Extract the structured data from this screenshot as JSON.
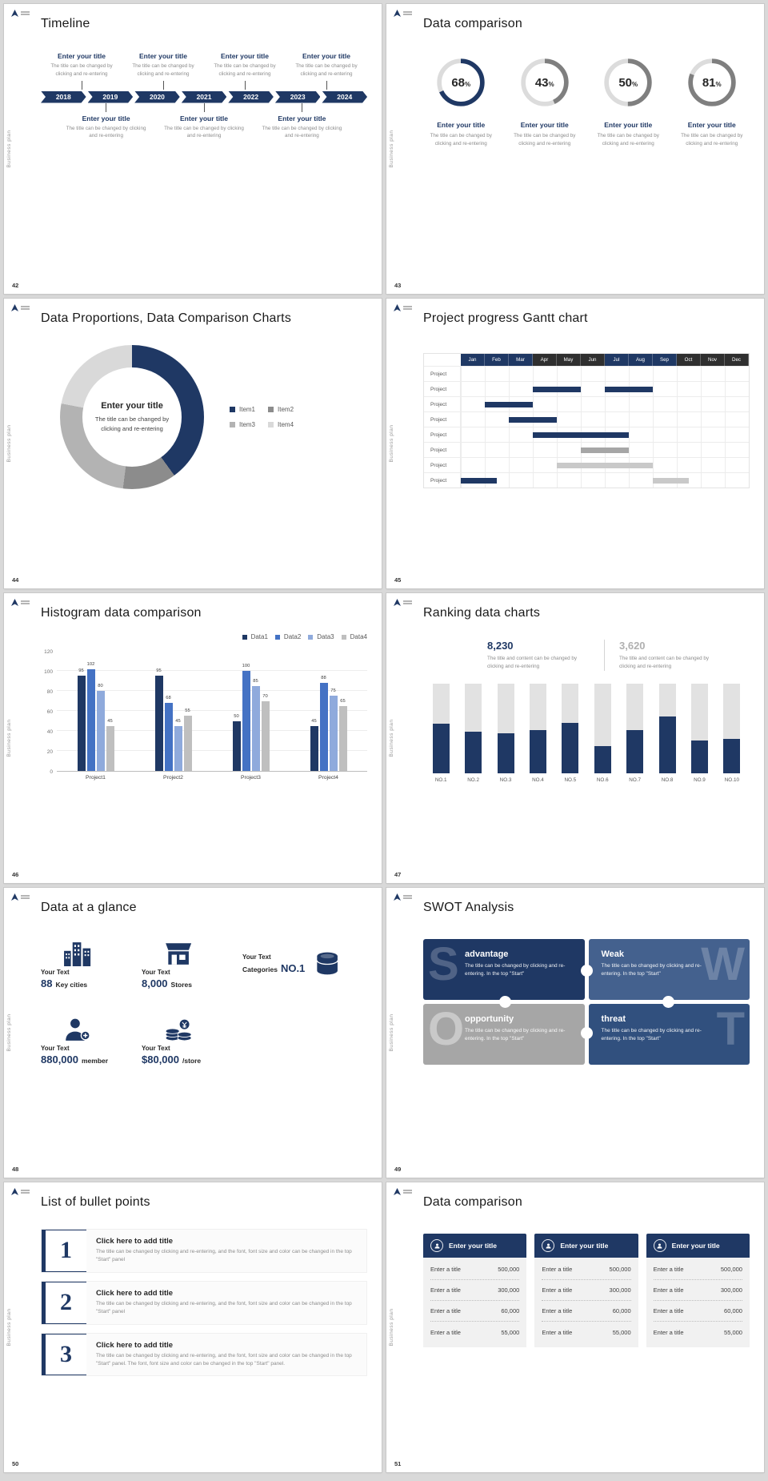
{
  "common": {
    "brand_vertical": "Business plan"
  },
  "slides": [
    {
      "number": "42",
      "title": "Timeline",
      "top_items": [
        {
          "title": "Enter your title",
          "desc": "The title can be changed by clicking and re-entering"
        },
        {
          "title": "Enter your title",
          "desc": "The title can be changed by clicking and re-entering"
        },
        {
          "title": "Enter your title",
          "desc": "The title can be changed by clicking and re-entering"
        },
        {
          "title": "Enter your title",
          "desc": "The title can be changed by clicking and re-entering"
        }
      ],
      "years": [
        "2018",
        "2019",
        "2020",
        "2021",
        "2022",
        "2023",
        "2024"
      ],
      "bottom_items": [
        {
          "title": "Enter your title",
          "desc": "The title can be changed by clicking and re-entering"
        },
        {
          "title": "Enter your title",
          "desc": "The title can be changed by clicking and re-entering"
        },
        {
          "title": "Enter your title",
          "desc": "The title can be changed by clicking and re-entering"
        }
      ]
    },
    {
      "number": "43",
      "title": "Data comparison",
      "kpis": [
        {
          "value": "68",
          "unit": "%",
          "pct": 68,
          "color": "#1f3864",
          "title": "Enter your title",
          "desc": "The title can be changed by clicking and re-entering"
        },
        {
          "value": "43",
          "unit": "%",
          "pct": 43,
          "color": "#7f7f7f",
          "title": "Enter your title",
          "desc": "The title can be changed by clicking and re-entering"
        },
        {
          "value": "50",
          "unit": "%",
          "pct": 50,
          "color": "#7f7f7f",
          "title": "Enter your title",
          "desc": "The title can be changed by clicking and re-entering"
        },
        {
          "value": "81",
          "unit": "%",
          "pct": 81,
          "color": "#7f7f7f",
          "title": "Enter your title",
          "desc": "The title can be changed by clicking and re-entering"
        }
      ]
    },
    {
      "number": "44",
      "title": "Data Proportions, Data Comparison Charts",
      "center_title": "Enter your title",
      "center_desc": "The title can be changed by clicking and re-entering",
      "chart_data": {
        "type": "pie",
        "labels": [
          "Item1",
          "Item2",
          "Item3",
          "Item4"
        ],
        "values": [
          40,
          12,
          26,
          22
        ],
        "colors": [
          "#1f3864",
          "#8c8c8c",
          "#b3b3b3",
          "#d9d9d9"
        ]
      }
    },
    {
      "number": "45",
      "title": "Project progress Gantt chart",
      "chart_data": {
        "type": "gantt",
        "months": [
          "Jan",
          "Feb",
          "Mar",
          "Apr",
          "May",
          "Jun",
          "Jul",
          "Aug",
          "Sep",
          "Oct",
          "Nov",
          "Dec"
        ],
        "header_colors": [
          "#1f3864",
          "#1f3864",
          "#1f3864",
          "#2f2f2f",
          "#2f2f2f",
          "#2f2f2f",
          "#1f3864",
          "#1f3864",
          "#1f3864",
          "#2f2f2f",
          "#2f2f2f",
          "#2f2f2f"
        ],
        "row_label": "Project",
        "rows": [
          {
            "bars": []
          },
          {
            "bars": [
              {
                "start": 3,
                "span": 2,
                "color": "#1f3864"
              },
              {
                "start": 6,
                "span": 2,
                "color": "#1f3864"
              }
            ]
          },
          {
            "bars": [
              {
                "start": 1,
                "span": 2,
                "color": "#1f3864"
              }
            ]
          },
          {
            "bars": [
              {
                "start": 2,
                "span": 2,
                "color": "#1f3864"
              }
            ]
          },
          {
            "bars": [
              {
                "start": 3,
                "span": 4,
                "color": "#1f3864"
              }
            ]
          },
          {
            "bars": [
              {
                "start": 5,
                "span": 2,
                "color": "#a6a6a6"
              }
            ]
          },
          {
            "bars": [
              {
                "start": 4,
                "span": 4,
                "color": "#c9c9c9"
              }
            ]
          },
          {
            "bars": [
              {
                "start": 0,
                "span": 1.5,
                "color": "#1f3864"
              },
              {
                "start": 8,
                "span": 1.5,
                "color": "#c9c9c9"
              }
            ]
          }
        ]
      }
    },
    {
      "number": "46",
      "title": "Histogram data comparison",
      "chart_data": {
        "type": "bar",
        "categories": [
          "Project1",
          "Project2",
          "Project3",
          "Project4"
        ],
        "series": [
          {
            "name": "Data1",
            "color": "#1f3864",
            "values": [
              95,
              95,
              50,
              45
            ]
          },
          {
            "name": "Data2",
            "color": "#4472c4",
            "values": [
              102,
              68,
              100,
              88
            ]
          },
          {
            "name": "Data3",
            "color": "#8faadc",
            "values": [
              80,
              45,
              85,
              75
            ]
          },
          {
            "name": "Data4",
            "color": "#bfbfbf",
            "values": [
              45,
              55,
              70,
              65
            ]
          }
        ],
        "ylim": [
          0,
          120
        ],
        "yticks": [
          0,
          20,
          40,
          60,
          80,
          100,
          120
        ]
      }
    },
    {
      "number": "47",
      "title": "Ranking data charts",
      "stat_primary": {
        "value": "8,230",
        "desc": "The title and content can be changed by clicking and re-entering"
      },
      "stat_secondary": {
        "value": "3,620",
        "desc": "The title and content can be changed by clicking and re-entering"
      },
      "chart_data": {
        "type": "bar",
        "categories": [
          "NO.1",
          "NO.2",
          "NO.3",
          "NO.4",
          "NO.5",
          "NO.6",
          "NO.7",
          "NO.8",
          "NO.9",
          "NO.10"
        ],
        "values": [
          55,
          46,
          44,
          48,
          56,
          30,
          48,
          63,
          36,
          38
        ],
        "max": 100,
        "bar_color": "#1f3864",
        "track_color": "#e2e2e2"
      }
    },
    {
      "number": "48",
      "title": "Data at a glance",
      "stats": [
        {
          "label": "Your Text",
          "value": "88",
          "unit": "Key cities",
          "icon": "city-icon"
        },
        {
          "label": "Your Text",
          "value": "8,000",
          "unit": "Stores",
          "icon": "store-icon"
        },
        {
          "label": "Your Text",
          "value": "NO.1",
          "unit": "Categories",
          "icon": "package-icon"
        },
        {
          "label": "Your Text",
          "value": "880,000",
          "unit": "member",
          "icon": "member-icon"
        },
        {
          "label": "Your Text",
          "value": "$80,000",
          "unit": "/store",
          "icon": "coins-icon"
        }
      ]
    },
    {
      "number": "49",
      "title": "SWOT Analysis",
      "quadrants": [
        {
          "letter": "S",
          "title": "advantage",
          "color": "#1f3864",
          "desc": "The title can be changed by clicking and re-entering. In the top \"Start\""
        },
        {
          "letter": "W",
          "title": "Weak",
          "color": "#44618e",
          "desc": "The title can be changed by clicking and re-entering. In the top \"Start\""
        },
        {
          "letter": "O",
          "title": "opportunity",
          "color": "#a6a6a6",
          "desc": "The title can be changed by clicking and re-entering. In the top \"Start\""
        },
        {
          "letter": "T",
          "title": "threat",
          "color": "#31507e",
          "desc": "The title can be changed by clicking and re-entering. In the top \"Start\""
        }
      ]
    },
    {
      "number": "50",
      "title": "List of bullet points",
      "items": [
        {
          "num": "1",
          "title": "Click here to add title",
          "desc": "The title can be changed by clicking and re-entering, and the font, font size and color can be changed in the top \"Start\" panel"
        },
        {
          "num": "2",
          "title": "Click here to add title",
          "desc": "The title can be changed by clicking and re-entering, and the font, font size and color can be changed in the top \"Start\" panel"
        },
        {
          "num": "3",
          "title": "Click here to add title",
          "desc": "The title can be changed by clicking and re-entering, and the font, font size and color can be changed in the top \"Start\" panel. The font, font size and color can be changed in the top \"Start\" panel."
        }
      ]
    },
    {
      "number": "51",
      "title": "Data comparison",
      "panels": [
        {
          "header": "Enter your title",
          "rows": [
            {
              "label": "Enter a title",
              "value": "500,000"
            },
            {
              "label": "Enter a title",
              "value": "300,000"
            },
            {
              "label": "Enter a title",
              "value": "60,000"
            },
            {
              "label": "Enter a title",
              "value": "55,000"
            }
          ]
        },
        {
          "header": "Enter your title",
          "rows": [
            {
              "label": "Enter a title",
              "value": "500,000"
            },
            {
              "label": "Enter a title",
              "value": "300,000"
            },
            {
              "label": "Enter a title",
              "value": "60,000"
            },
            {
              "label": "Enter a title",
              "value": "55,000"
            }
          ]
        },
        {
          "header": "Enter your title",
          "rows": [
            {
              "label": "Enter a title",
              "value": "500,000"
            },
            {
              "label": "Enter a title",
              "value": "300,000"
            },
            {
              "label": "Enter a title",
              "value": "60,000"
            },
            {
              "label": "Enter a title",
              "value": "55,000"
            }
          ]
        }
      ]
    }
  ]
}
